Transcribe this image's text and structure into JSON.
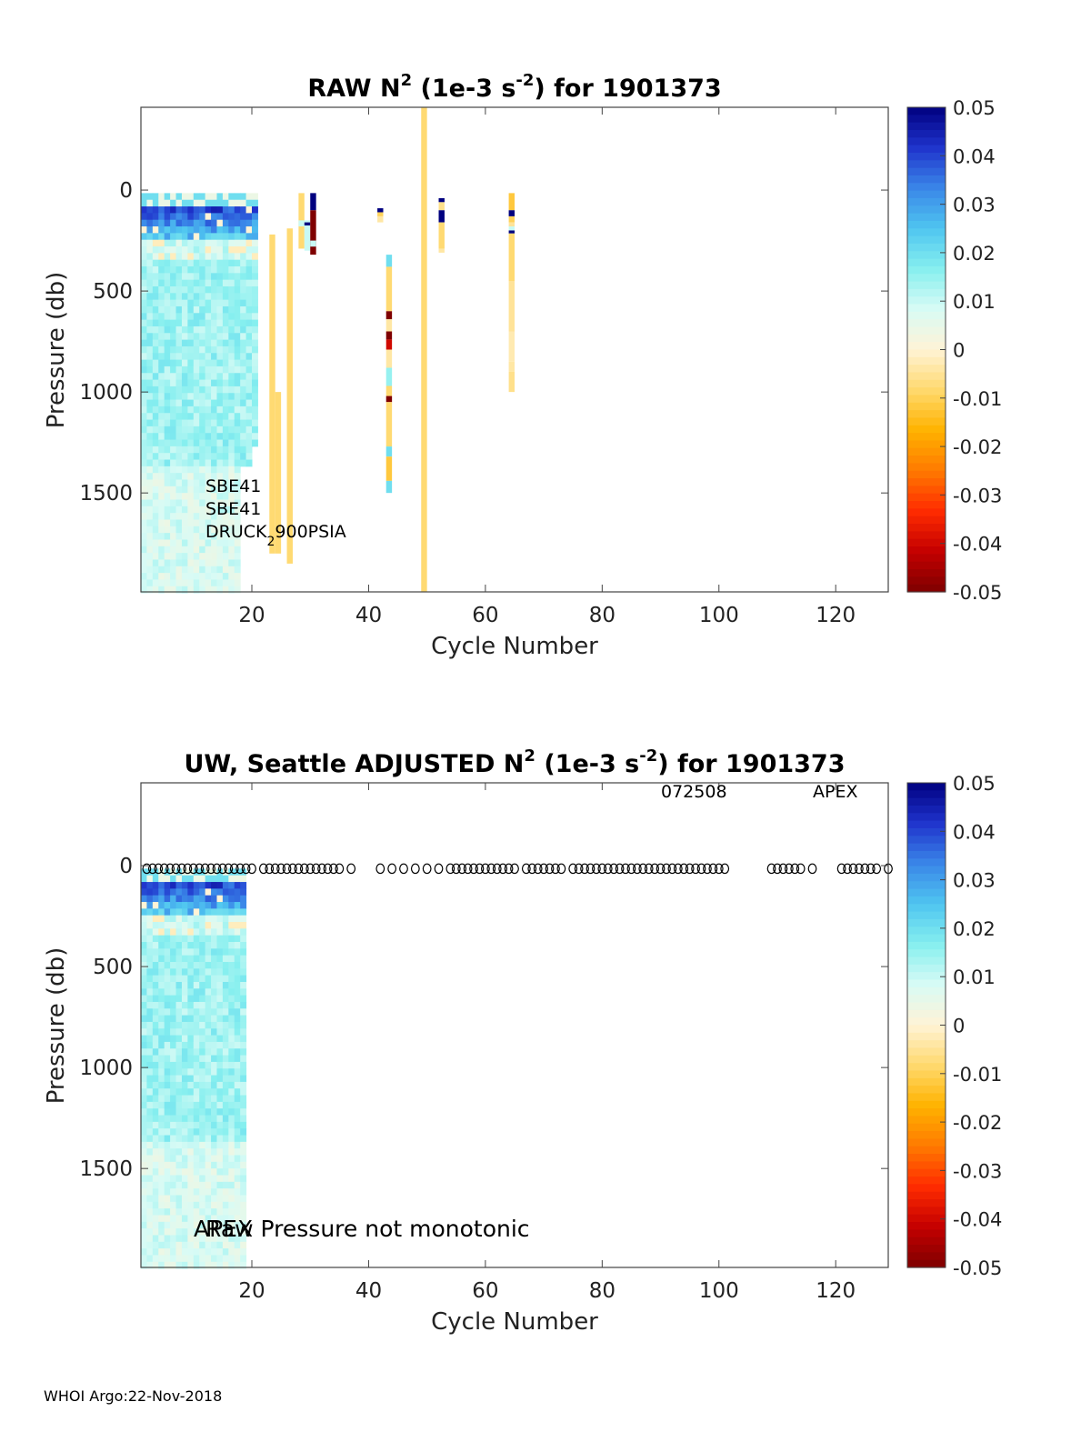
{
  "footer": "WHOI Argo:22-Nov-2018",
  "colormap": [
    "#7f0000",
    "#c40000",
    "#ff2b00",
    "#ff7a00",
    "#ffb300",
    "#ffd96e",
    "#fff3d6",
    "#d8fbf5",
    "#86efef",
    "#4fc5f0",
    "#3a86e8",
    "#1f33cc",
    "#00007f"
  ],
  "chart_data": [
    {
      "type": "heatmap",
      "title": "RAW N",
      "title_sup1": "2",
      "title_mid": " (1e-3 s",
      "title_sup2": "-2",
      "title_end": ") for 1901373",
      "xlabel": "Cycle Number",
      "ylabel": "Pressure (db)",
      "xlim": [
        1,
        129
      ],
      "ylim": [
        -410,
        1990
      ],
      "y_reversed": true,
      "xticks": [
        20,
        40,
        60,
        80,
        100,
        120
      ],
      "yticks": [
        0,
        500,
        1000,
        1500
      ],
      "clim": [
        -0.05,
        0.05
      ],
      "cbar_ticks": [
        "0.05",
        "0.04",
        "0.03",
        "0.02",
        "0.01",
        "0",
        "-0.01",
        "-0.02",
        "-0.03",
        "-0.04",
        "-0.05"
      ],
      "annotations": [
        "SBE41",
        "SBE41",
        "DRUCK",
        "2",
        "900PSIA"
      ],
      "columns": [
        {
          "x": 23.5,
          "segments": [
            [
              220,
              1800,
              -0.008
            ]
          ]
        },
        {
          "x": 24.5,
          "segments": [
            [
              1000,
              1800,
              -0.008
            ]
          ]
        },
        {
          "x": 26.5,
          "segments": [
            [
              190,
              1850,
              -0.008
            ]
          ]
        },
        {
          "x": 28.5,
          "segments": [
            [
              15,
              290,
              -0.008
            ],
            [
              150,
              180,
              0.01
            ]
          ]
        },
        {
          "x": 29.5,
          "segments": [
            [
              150,
              300,
              0.01
            ],
            [
              160,
              175,
              0.05
            ]
          ]
        },
        {
          "x": 30.5,
          "segments": [
            [
              15,
              100,
              0.05
            ],
            [
              100,
              320,
              -0.05
            ],
            [
              250,
              280,
              0.01
            ]
          ]
        },
        {
          "x": 42,
          "segments": [
            [
              90,
              110,
              0.05
            ],
            [
              110,
              130,
              -0.01
            ],
            [
              130,
              160,
              -0.004
            ]
          ]
        },
        {
          "x": 43.5,
          "segments": [
            [
              320,
              380,
              0.02
            ],
            [
              380,
              600,
              -0.008
            ],
            [
              600,
              640,
              -0.05
            ],
            [
              640,
              700,
              -0.004
            ],
            [
              700,
              740,
              -0.05
            ],
            [
              740,
              790,
              -0.04
            ],
            [
              790,
              880,
              -0.004
            ],
            [
              880,
              970,
              0.015
            ],
            [
              970,
              1020,
              -0.008
            ],
            [
              1020,
              1050,
              -0.05
            ],
            [
              1050,
              1270,
              -0.008
            ],
            [
              1270,
              1320,
              0.02
            ],
            [
              1320,
              1440,
              -0.012
            ],
            [
              1440,
              1500,
              0.02
            ]
          ]
        },
        {
          "x": 49.5,
          "segments": [
            [
              -410,
              1990,
              -0.008
            ]
          ]
        },
        {
          "x": 52.5,
          "segments": [
            [
              40,
              60,
              0.05
            ],
            [
              60,
              100,
              -0.006
            ],
            [
              100,
              160,
              0.05
            ],
            [
              160,
              290,
              -0.008
            ],
            [
              290,
              310,
              -0.004
            ]
          ]
        },
        {
          "x": 64.5,
          "segments": [
            [
              15,
              100,
              -0.012
            ],
            [
              100,
              130,
              0.05
            ],
            [
              130,
              160,
              -0.01
            ],
            [
              160,
              180,
              -0.005
            ],
            [
              180,
              200,
              0.01
            ],
            [
              200,
              215,
              0.05
            ],
            [
              215,
              450,
              -0.008
            ],
            [
              450,
              700,
              -0.005
            ],
            [
              700,
              850,
              -0.003
            ],
            [
              850,
              900,
              -0.004
            ],
            [
              900,
              1000,
              -0.006
            ]
          ]
        }
      ]
    },
    {
      "type": "heatmap",
      "title": "UW, Seattle  ADJUSTED N",
      "title_sup1": "2",
      "title_mid": " (1e-3 s",
      "title_sup2": "-2",
      "title_end": ") for 1901373",
      "xlabel": "Cycle Number",
      "ylabel": "Pressure (db)",
      "xlim": [
        1,
        129
      ],
      "ylim": [
        -410,
        1990
      ],
      "y_reversed": true,
      "xticks": [
        20,
        40,
        60,
        80,
        100,
        120
      ],
      "yticks": [
        0,
        500,
        1000,
        1500
      ],
      "clim": [
        -0.05,
        0.05
      ],
      "cbar_ticks": [
        "0.05",
        "0.04",
        "0.03",
        "0.02",
        "0.01",
        "0",
        "-0.01",
        "-0.02",
        "-0.03",
        "-0.04",
        "-0.05"
      ],
      "annotations": [
        "072508",
        "APEX",
        "APEX",
        "Raw Pressure not monotonic"
      ],
      "marker_cycles": [
        2,
        3,
        4,
        5,
        6,
        7,
        8,
        9,
        10,
        11,
        12,
        13,
        14,
        15,
        16,
        17,
        18,
        19,
        20,
        22,
        23,
        24,
        25,
        26,
        27,
        28,
        29,
        30,
        31,
        32,
        33,
        34,
        35,
        37,
        42,
        44,
        46,
        48,
        50,
        52,
        54,
        55,
        56,
        57,
        58,
        59,
        60,
        61,
        62,
        63,
        64,
        65,
        67,
        68,
        69,
        70,
        71,
        72,
        73,
        75,
        76,
        77,
        78,
        79,
        80,
        81,
        82,
        83,
        84,
        85,
        86,
        87,
        88,
        89,
        90,
        91,
        92,
        93,
        94,
        95,
        96,
        97,
        98,
        99,
        100,
        101,
        109,
        110,
        111,
        112,
        113,
        114,
        116,
        121,
        122,
        123,
        124,
        125,
        126,
        127,
        129
      ],
      "marker_pressure": 15
    }
  ]
}
